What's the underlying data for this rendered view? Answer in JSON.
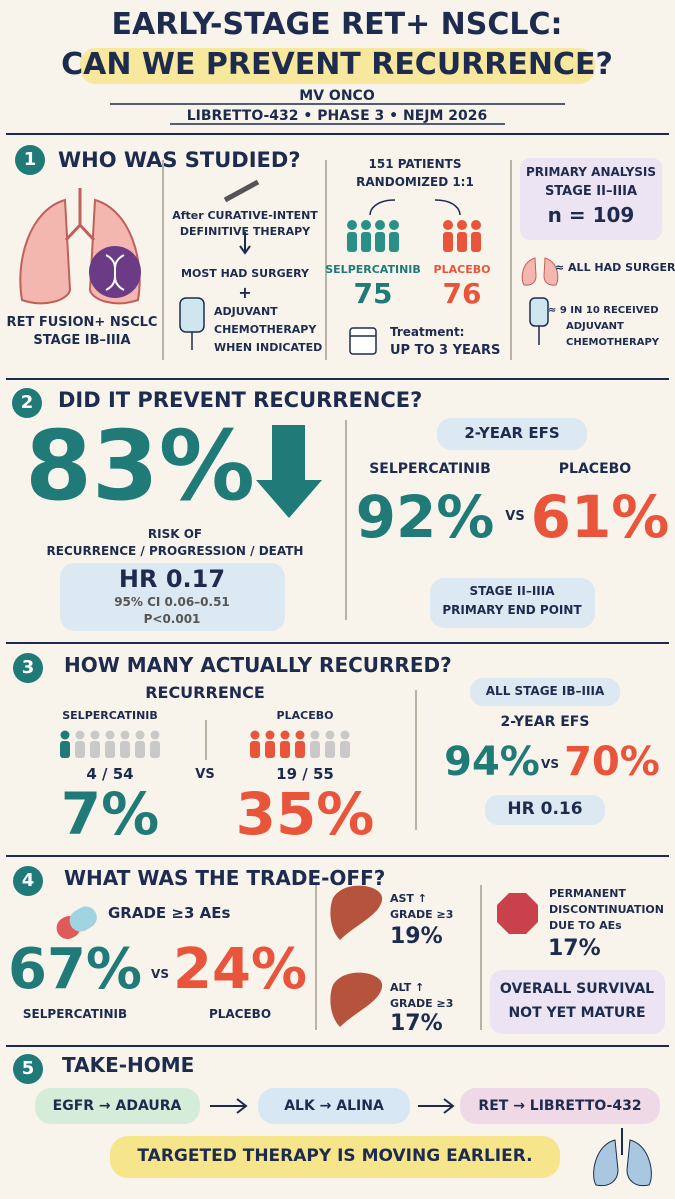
{
  "header": {
    "title_line1": "EARLY-STAGE RET+ NSCLC:",
    "title_line2": "CAN WE PREVENT RECURRENCE?",
    "author": "MV ONCO",
    "subtitle": "LIBRETTO-432 • PHASE 3 • NEJM 2026"
  },
  "sections": [
    {
      "number": "1",
      "heading": "WHO WAS STUDIED?",
      "population": [
        "RET FUSION+ NSCLC",
        "STAGE IB–IIIA"
      ],
      "flow": [
        "After CURATIVE-INTENT",
        "DEFINITIVE THERAPY",
        "MOST HAD SURGERY",
        "+",
        "ADJUVANT",
        "CHEMOTHERAPY",
        "WHEN INDICATED"
      ],
      "randomization": [
        "151 PATIENTS",
        "RANDOMIZED 1:1"
      ],
      "arms": [
        {
          "name": "SELPERCATINIB",
          "n": "75"
        },
        {
          "name": "PLACEBO",
          "n": "76"
        }
      ],
      "treatment": [
        "Treatment:",
        "UP TO 3 YEARS"
      ],
      "primary_analysis": [
        "PRIMARY ANALYSIS",
        "STAGE II–IIIA",
        "n = 109"
      ],
      "notes": [
        "≈ ALL HAD SURGERY",
        "≈ 9 IN 10 RECEIVED",
        "ADJUVANT",
        "CHEMOTHERAPY"
      ]
    },
    {
      "number": "2",
      "heading": "DID IT PREVENT RECURRENCE?",
      "reduction": "83%",
      "reduction_label": [
        "RISK OF",
        "RECURRENCE / PROGRESSION / DEATH"
      ],
      "hr": "HR 0.17",
      "ci": "95% CI  0.06–0.51",
      "p": "P<0.001",
      "efs_label": "2-YEAR EFS",
      "arm_names": [
        "SELPERCATINIB",
        "PLACEBO"
      ],
      "efs": [
        "92%",
        "61%"
      ],
      "vs": "VS",
      "footnote": [
        "STAGE II–IIIA",
        "PRIMARY END POINT"
      ]
    },
    {
      "number": "3",
      "heading": "HOW MANY ACTUALLY RECURRED?",
      "recurrence_label": "RECURRENCE",
      "arm_names": [
        "SELPERCATINIB",
        "PLACEBO"
      ],
      "counts": [
        "4 / 54",
        "19 / 55"
      ],
      "vs": "VS",
      "percents": [
        "7%",
        "35%"
      ],
      "population": "ALL STAGE IB–IIIA",
      "efs_label": "2-YEAR EFS",
      "efs": [
        "94%",
        "70%"
      ],
      "vs2": "VS",
      "hr": "HR 0.16"
    },
    {
      "number": "4",
      "heading": "WHAT WAS THE TRADE-OFF?",
      "ae_label": "GRADE ≥3 AEs",
      "ae": [
        "67%",
        "24%"
      ],
      "vs": "VS",
      "arm_names": [
        "SELPERCATINIB",
        "PLACEBO"
      ],
      "ast": [
        "AST ↑",
        "GRADE ≥3",
        "19%"
      ],
      "alt": [
        "ALT ↑",
        "GRADE ≥3",
        "17%"
      ],
      "discontinuation": [
        "PERMANENT",
        "DISCONTINUATION",
        "DUE TO AEs",
        "17%"
      ],
      "os": [
        "OVERALL SURVIVAL",
        "NOT YET MATURE"
      ]
    },
    {
      "number": "5",
      "heading": "TAKE-HOME",
      "trials": [
        "EGFR → ADAURA",
        "ALK → ALINA",
        "RET → LIBRETTO-432"
      ],
      "message": "TARGETED THERAPY IS MOVING EARLIER."
    }
  ]
}
